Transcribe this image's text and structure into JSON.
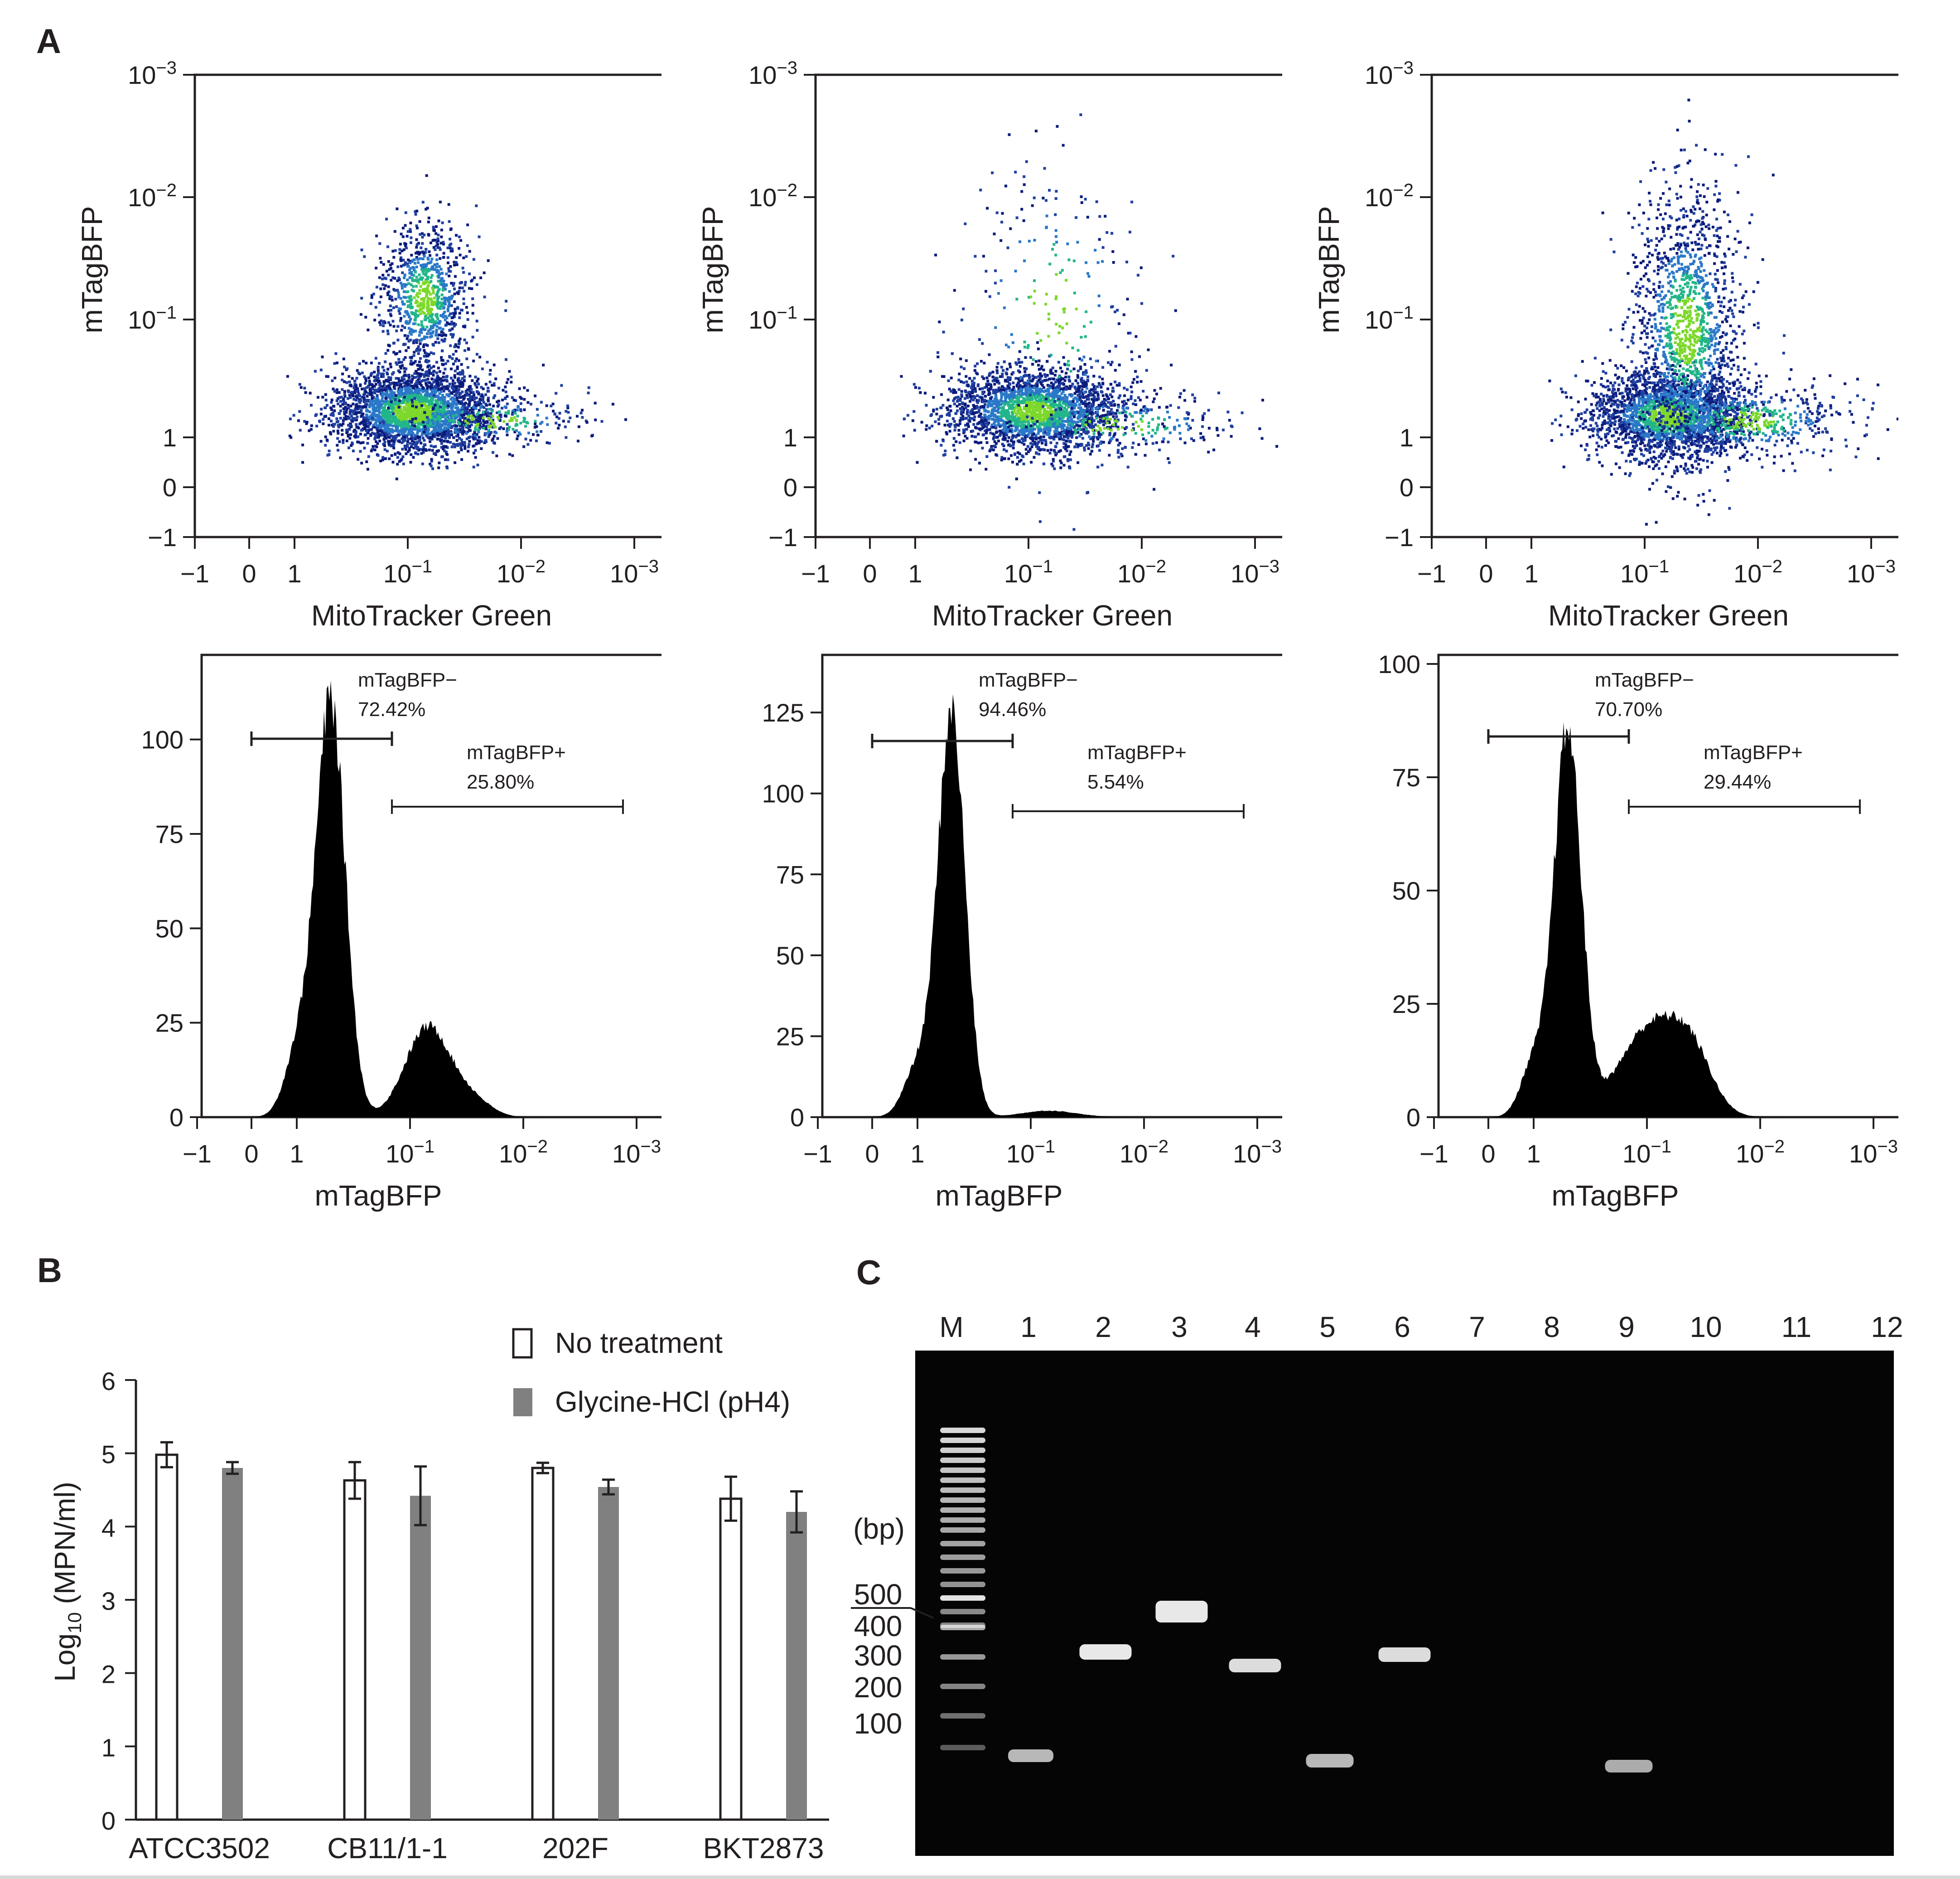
{
  "panels": {
    "A": "A",
    "B": "B",
    "C": "C"
  },
  "panel_a": {
    "dot_x_label": "MitoTracker Green",
    "dot_y_label": "mTagBFP",
    "hist_x_label": "mTagBFP",
    "log_ticks": [
      "−1",
      "0",
      "1",
      "10−1",
      "10−2",
      "10−3"
    ],
    "dot_y_ticks": [
      "10−3",
      "10−2",
      "10−1",
      "1",
      "0",
      "−1"
    ],
    "hist_panels": [
      {
        "y_ticks": [
          0,
          25,
          50,
          75,
          100
        ],
        "neg_label": "mTagBFP−",
        "neg_pct": "72.42%",
        "pos_label": "mTagBFP+",
        "pos_pct": "25.80%"
      },
      {
        "y_ticks": [
          0,
          25,
          50,
          75,
          100,
          125
        ],
        "neg_label": "mTagBFP−",
        "neg_pct": "94.46%",
        "pos_label": "mTagBFP+",
        "pos_pct": "5.54%"
      },
      {
        "y_ticks": [
          0,
          25,
          50,
          75,
          100
        ],
        "neg_label": "mTagBFP−",
        "neg_pct": "70.70%",
        "pos_label": "mTagBFP+",
        "pos_pct": "29.44%"
      }
    ]
  },
  "chart_data": {
    "type": "bar",
    "categories": [
      "ATCC3502",
      "CB11/1-1",
      "202F",
      "BKT2873"
    ],
    "series": [
      {
        "name": "No treatment",
        "values": [
          4.98,
          4.63,
          4.8,
          4.38
        ],
        "errors": [
          0.17,
          0.25,
          0.07,
          0.3
        ],
        "color": "#ffffff"
      },
      {
        "name": "Glycine-HCl (pH4)",
        "values": [
          4.8,
          4.42,
          4.54,
          4.2
        ],
        "errors": [
          0.08,
          0.4,
          0.1,
          0.28
        ],
        "color": "#808080"
      }
    ],
    "ylabel": "Log10 (MPN/ml)",
    "ylim": [
      0,
      6
    ],
    "yticks": [
      0,
      1,
      2,
      3,
      4,
      5,
      6
    ]
  },
  "panel_c": {
    "lanes": [
      "M",
      "1",
      "2",
      "3",
      "4",
      "5",
      "6",
      "7",
      "8",
      "9",
      "10",
      "11",
      "12"
    ],
    "unit": "(bp)",
    "size_labels": [
      "500",
      "400",
      "300",
      "200",
      "100"
    ]
  }
}
